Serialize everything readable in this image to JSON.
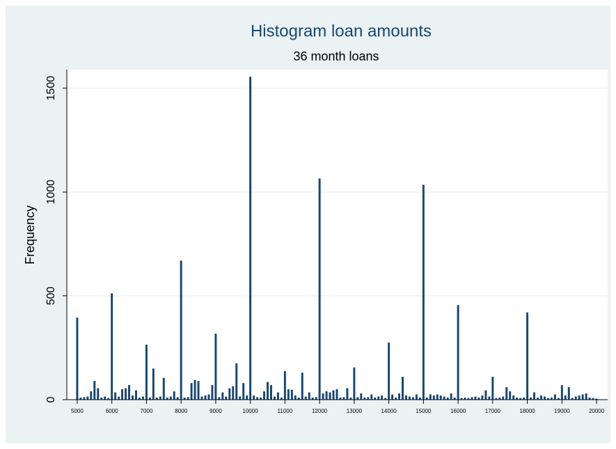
{
  "chart_data": {
    "type": "histogram",
    "title": "Histogram loan amounts",
    "subtitle": "36 month loans",
    "y_label": "Frequency",
    "color": "#1a476f",
    "grid": true,
    "bins": [
      4950,
      5050,
      5150,
      5250,
      5350,
      5450,
      5550,
      5650,
      5750,
      5850,
      5950,
      6050,
      6150,
      6250,
      6350,
      6450,
      6550,
      6650,
      6750,
      6850,
      6950,
      7050,
      7150,
      7250,
      7350,
      7450,
      7550,
      7650,
      7750,
      7850,
      7950,
      8050,
      8150,
      8250,
      8350,
      8450,
      8550,
      8650,
      8750,
      8850,
      8950,
      9050,
      9150,
      9250,
      9350,
      9450,
      9550,
      9650,
      9750,
      9850,
      9950,
      10050,
      10150,
      10250,
      10350,
      10450,
      10550,
      10650,
      10750,
      10850,
      10950,
      11050,
      11150,
      11250,
      11350,
      11450,
      11550,
      11650,
      11750,
      11850,
      11950,
      12050,
      12150,
      12250,
      12350,
      12450,
      12550,
      12650,
      12750,
      12850,
      12950,
      13050,
      13150,
      13250,
      13350,
      13450,
      13550,
      13650,
      13750,
      13850,
      13950,
      14050,
      14150,
      14250,
      14350,
      14450,
      14550,
      14650,
      14750,
      14850,
      14950,
      15050,
      15150,
      15250,
      15350,
      15450,
      15550,
      15650,
      15750,
      15850,
      15950,
      16050,
      16150,
      16250,
      16350,
      16450,
      16550,
      16650,
      16750,
      16850,
      16950,
      17050,
      17150,
      17250,
      17350,
      17450,
      17550,
      17650,
      17750,
      17850,
      17950,
      18050,
      18150,
      18250,
      18350,
      18450,
      18550,
      18650,
      18750,
      18850,
      18950,
      19050,
      19150,
      19250,
      19350,
      19450,
      19550,
      19650,
      19750,
      19850,
      19950,
      20050
    ],
    "values": [
      395,
      10,
      12,
      15,
      40,
      90,
      55,
      10,
      15,
      8,
      512,
      35,
      15,
      50,
      55,
      70,
      20,
      45,
      10,
      15,
      265,
      10,
      150,
      10,
      15,
      105,
      10,
      15,
      40,
      12,
      670,
      10,
      12,
      80,
      95,
      90,
      15,
      20,
      25,
      70,
      318,
      12,
      35,
      15,
      55,
      65,
      175,
      15,
      80,
      20,
      1555,
      20,
      12,
      10,
      40,
      85,
      70,
      15,
      35,
      10,
      138,
      50,
      48,
      20,
      10,
      130,
      15,
      35,
      10,
      12,
      1065,
      30,
      40,
      35,
      45,
      50,
      10,
      12,
      55,
      10,
      155,
      12,
      30,
      10,
      12,
      25,
      10,
      15,
      20,
      8,
      275,
      25,
      10,
      30,
      110,
      20,
      15,
      12,
      25,
      10,
      1035,
      10,
      25,
      20,
      25,
      20,
      15,
      10,
      30,
      10,
      455,
      8,
      10,
      8,
      12,
      15,
      10,
      20,
      45,
      15,
      110,
      8,
      10,
      15,
      60,
      40,
      20,
      10,
      8,
      10,
      420,
      10,
      35,
      10,
      20,
      15,
      8,
      10,
      25,
      8,
      70,
      20,
      60,
      8,
      15,
      20,
      25,
      30,
      10,
      8,
      5
    ],
    "xlim": [
      4700,
      20320
    ],
    "xticks": [
      5000,
      6000,
      7000,
      8000,
      9000,
      10000,
      11000,
      12000,
      13000,
      14000,
      15000,
      16000,
      17000,
      18000,
      19000,
      20000
    ],
    "ylim": [
      0,
      1590
    ],
    "yticks": [
      0,
      500,
      1000,
      1500
    ]
  }
}
